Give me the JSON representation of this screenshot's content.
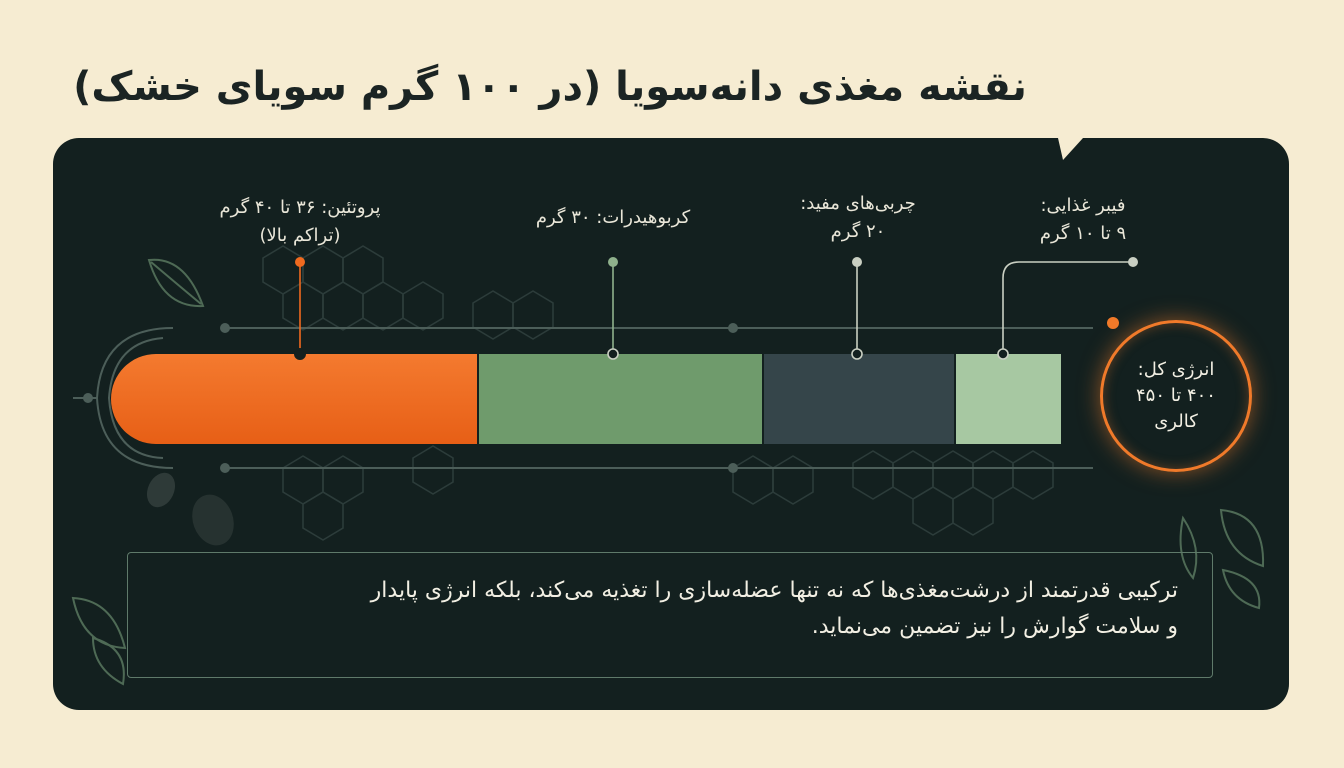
{
  "title": "نقشه مغذی دانه‌سویا (در ۱۰۰ گرم سویای خشک)",
  "segments": {
    "protein": {
      "line1": "پروتئین: ۳۶ تا ۴۰ گرم",
      "line2": "(تراکم بالا)",
      "color": "#f06a1f"
    },
    "carbohydrate": {
      "line1": "کربوهیدرات: ۳۰ گرم",
      "color": "#6f9b6c"
    },
    "fat": {
      "line1": "چربی‌های مفید:",
      "line2": "۲۰ گرم",
      "color": "#35454a"
    },
    "fiber": {
      "line1": "فیبر غذایی:",
      "line2": "۹ تا ۱۰ گرم",
      "color": "#a7c8a2"
    }
  },
  "energy": {
    "line1": "انرژی کل:",
    "line2": "۴۰۰ تا ۴۵۰",
    "line3": "کالری",
    "color": "#f07a2a"
  },
  "summary": {
    "line1": "ترکیبی قدرتمند از درشت‌مغذی‌ها که نه تنها عضله‌سازی را تغذیه می‌کند، بلکه انرژی پایدار",
    "line2": "و سلامت گوارش را نیز تضمین می‌نماید."
  },
  "icons": [
    "leaf-icon",
    "soybean-icon",
    "hexagon-molecule-pattern"
  ]
}
